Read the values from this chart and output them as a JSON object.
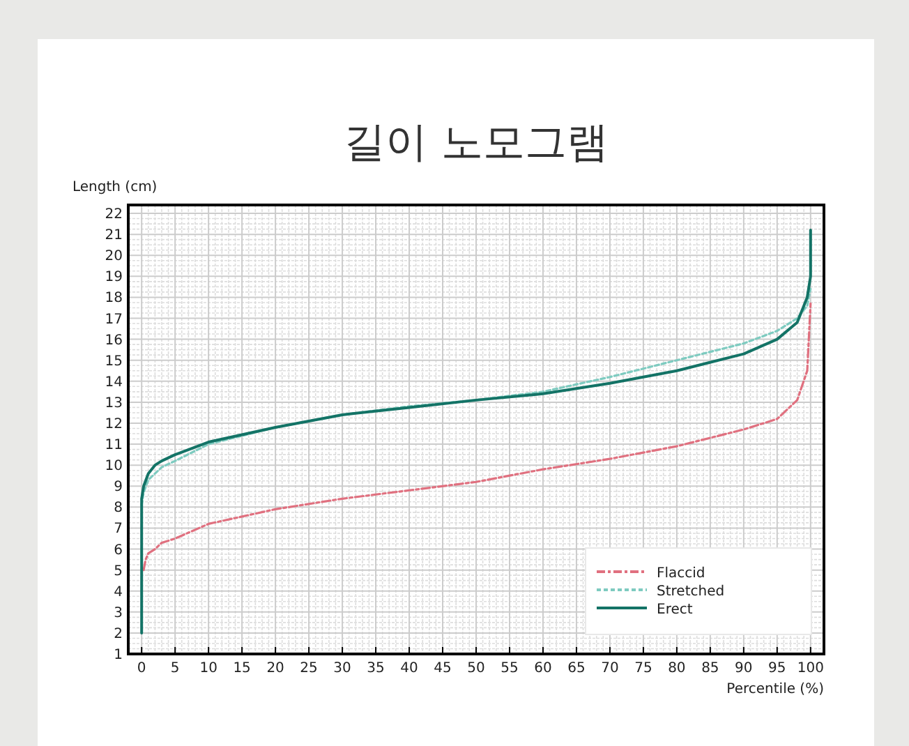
{
  "chart_data": {
    "type": "line",
    "title": "길이 노모그램",
    "xlabel": "Percentile (%)",
    "ylabel": "Length (cm)",
    "xlim": [
      -2,
      102
    ],
    "ylim": [
      1,
      22.4
    ],
    "xticks": [
      0,
      5,
      10,
      15,
      20,
      25,
      30,
      35,
      40,
      45,
      50,
      55,
      60,
      65,
      70,
      75,
      80,
      85,
      90,
      95,
      100
    ],
    "yticks": [
      1,
      2,
      3,
      4,
      5,
      6,
      7,
      8,
      9,
      10,
      11,
      12,
      13,
      14,
      15,
      16,
      17,
      18,
      19,
      20,
      21,
      22
    ],
    "grid": true,
    "legend": "bottom right",
    "marker": "none",
    "series": [
      {
        "name": "Flaccid",
        "color": "#e0707f",
        "line_style": "dashed",
        "x": [
          0.3,
          0.6,
          1,
          2,
          3,
          5,
          10,
          20,
          30,
          40,
          50,
          60,
          70,
          80,
          90,
          95,
          98,
          99.5,
          100
        ],
        "values": [
          5.0,
          5.5,
          5.8,
          6.0,
          6.3,
          6.5,
          7.2,
          7.9,
          8.4,
          8.8,
          9.2,
          9.8,
          10.3,
          10.9,
          11.7,
          12.2,
          13.1,
          14.5,
          17.7
        ]
      },
      {
        "name": "Stretched",
        "color": "#7ecbc0",
        "line_style": "dotted",
        "x": [
          0,
          0.3,
          1,
          2,
          3,
          5,
          10,
          20,
          30,
          40,
          50,
          60,
          70,
          80,
          90,
          95,
          98,
          99.5,
          100
        ],
        "values": [
          8.1,
          8.7,
          9.3,
          9.6,
          9.9,
          10.2,
          11.0,
          11.8,
          12.4,
          12.8,
          13.1,
          13.5,
          14.2,
          15.0,
          15.8,
          16.4,
          17.0,
          17.6,
          18.4
        ]
      },
      {
        "name": "Erect",
        "color": "#137366",
        "line_style": "solid",
        "x": [
          0,
          0,
          0.3,
          1,
          2,
          3,
          5,
          10,
          20,
          30,
          40,
          50,
          60,
          70,
          80,
          90,
          95,
          98,
          99.5,
          100,
          100
        ],
        "values": [
          2.0,
          8.4,
          9.0,
          9.6,
          10.0,
          10.2,
          10.5,
          11.1,
          11.8,
          12.4,
          12.75,
          13.1,
          13.4,
          13.9,
          14.5,
          15.3,
          16.0,
          16.8,
          18.0,
          19.0,
          21.2
        ]
      }
    ]
  }
}
